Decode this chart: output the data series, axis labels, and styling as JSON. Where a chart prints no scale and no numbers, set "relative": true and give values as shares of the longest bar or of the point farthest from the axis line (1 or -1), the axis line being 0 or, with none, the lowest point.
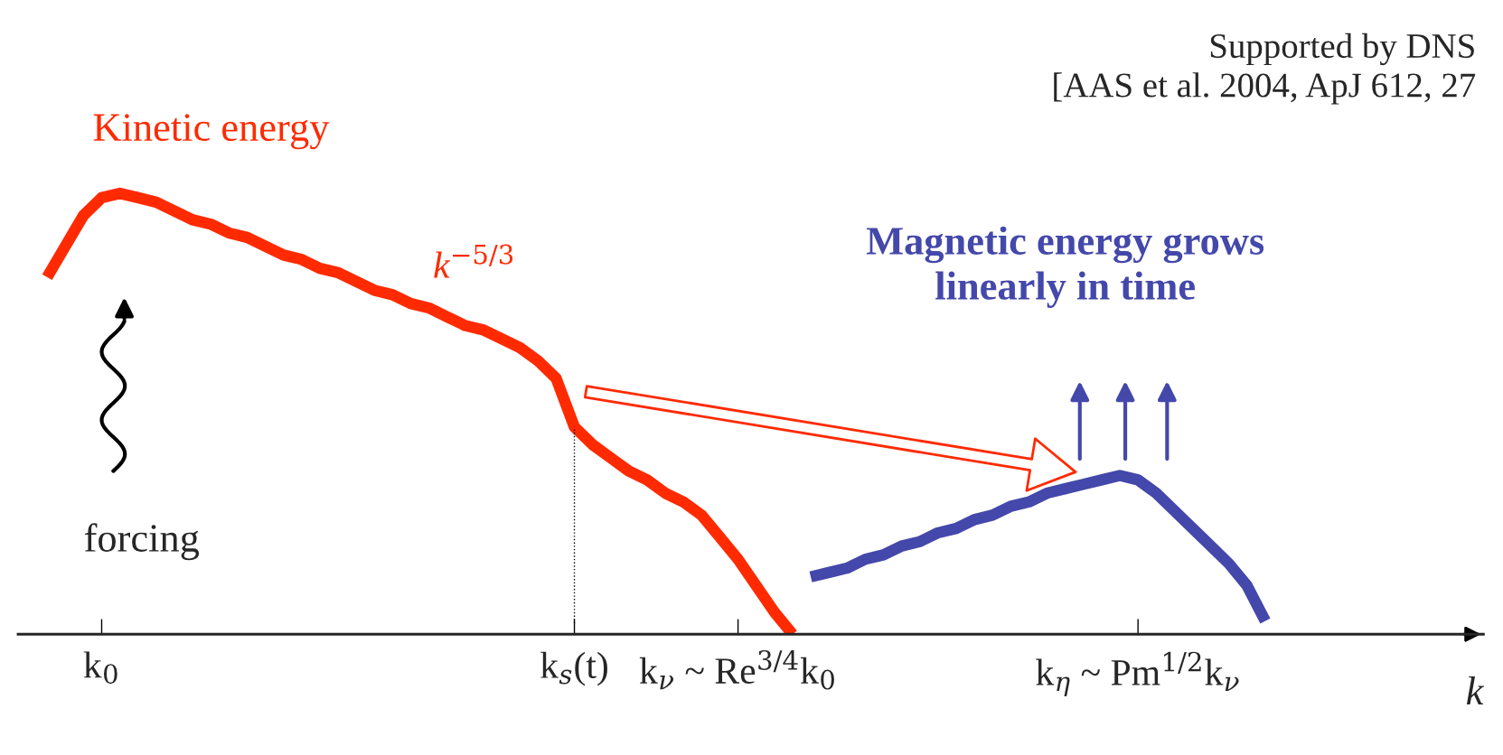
{
  "chart_data": {
    "type": "line",
    "relative": true,
    "xlabel": "k",
    "categories": [
      null,
      null,
      null,
      null,
      "k$_{0}$",
      null,
      null,
      null,
      null,
      null,
      null,
      null,
      null,
      null,
      null,
      null,
      null,
      null,
      null,
      null,
      null,
      null,
      null,
      null,
      null,
      null,
      null,
      null,
      null,
      null,
      "k$_{s}$(t)",
      null,
      null,
      null,
      null,
      null,
      null,
      null,
      null,
      "k$_{ν}$ ~ Re$^{3/4}$k$_{0}$",
      null,
      null,
      null,
      null,
      null,
      null,
      null,
      null,
      null,
      null,
      null,
      null,
      null,
      null,
      null,
      null,
      null,
      null,
      null,
      null,
      null,
      "k$_{η}$ ~ Pm$^{1/2}$k$_{ν}$",
      null,
      null,
      null,
      null,
      null,
      null,
      null,
      null,
      null,
      null,
      null,
      null,
      null,
      null,
      null,
      null,
      null,
      null
    ],
    "series": [
      {
        "name": "Kinetic energy",
        "color": "#ff2a00",
        "values": [
          null,
          0.81,
          0.88,
          0.95,
          0.99,
          1.0,
          0.99,
          0.98,
          0.96,
          0.94,
          0.93,
          0.91,
          0.9,
          0.88,
          0.86,
          0.85,
          0.83,
          0.82,
          0.8,
          0.78,
          0.77,
          0.75,
          0.74,
          0.72,
          0.7,
          0.69,
          0.67,
          0.65,
          0.62,
          0.58,
          0.47,
          0.43,
          0.4,
          0.37,
          0.35,
          0.32,
          0.3,
          0.27,
          0.22,
          0.17,
          0.11,
          0.05,
          0,
          null,
          null,
          null,
          null,
          null,
          null,
          null,
          null,
          null,
          null,
          null,
          null,
          null,
          null,
          null,
          null,
          null,
          null,
          null,
          null,
          null,
          null,
          null,
          null,
          null,
          null,
          null,
          null,
          null,
          null,
          null,
          null,
          null,
          null,
          null,
          null,
          null
        ]
      },
      {
        "name": "Magnetic energy grows\nlinearly in time",
        "color": "#4448aa",
        "values": [
          null,
          null,
          null,
          null,
          null,
          null,
          null,
          null,
          null,
          null,
          null,
          null,
          null,
          null,
          null,
          null,
          null,
          null,
          null,
          null,
          null,
          null,
          null,
          null,
          null,
          null,
          null,
          null,
          null,
          null,
          null,
          null,
          null,
          null,
          null,
          null,
          null,
          null,
          null,
          null,
          null,
          null,
          null,
          0.13,
          0.14,
          0.15,
          0.17,
          0.18,
          0.2,
          0.21,
          0.23,
          0.24,
          0.26,
          0.27,
          0.29,
          0.3,
          0.32,
          0.33,
          0.34,
          0.35,
          0.36,
          0.35,
          0.32,
          0.28,
          0.24,
          0.2,
          0.16,
          0.11,
          0.03,
          null,
          null,
          null,
          null,
          null,
          null,
          null,
          null,
          null,
          null,
          null
        ]
      }
    ],
    "ref_lines": [
      {
        "axis": "x",
        "value": "k$_{s}$(t)",
        "color": "#000000",
        "line_style": "dotted"
      }
    ],
    "annotations": [
      "k$^{−5/3}$",
      "forcing",
      "Supported by DNS\n[AAS et al. 2004, ApJ 612, 27"
    ],
    "grid": false,
    "legend": false,
    "line_style": "solid",
    "marker": "none"
  }
}
